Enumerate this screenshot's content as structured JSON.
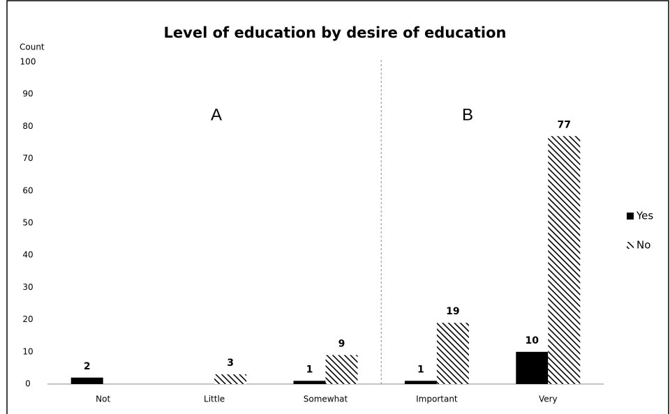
{
  "chart_data": {
    "type": "bar",
    "title": "Level of education by desire of education",
    "y_label": "Count",
    "annotations": [
      "A",
      "B"
    ],
    "categories": [
      "Not",
      "Little",
      "Somewhat",
      "Important",
      "Very"
    ],
    "series": [
      {
        "name": "Yes",
        "color": "#000000",
        "values": [
          2,
          null,
          1,
          1,
          10
        ]
      },
      {
        "name": "No",
        "color": "#000000",
        "hatch": true,
        "values": [
          null,
          3,
          9,
          19,
          77
        ]
      }
    ],
    "ylim": [
      0,
      100
    ],
    "yticks": [
      0,
      10,
      20,
      30,
      40,
      50,
      60,
      70,
      80,
      90,
      100
    ],
    "grid": false,
    "legend": "right"
  }
}
